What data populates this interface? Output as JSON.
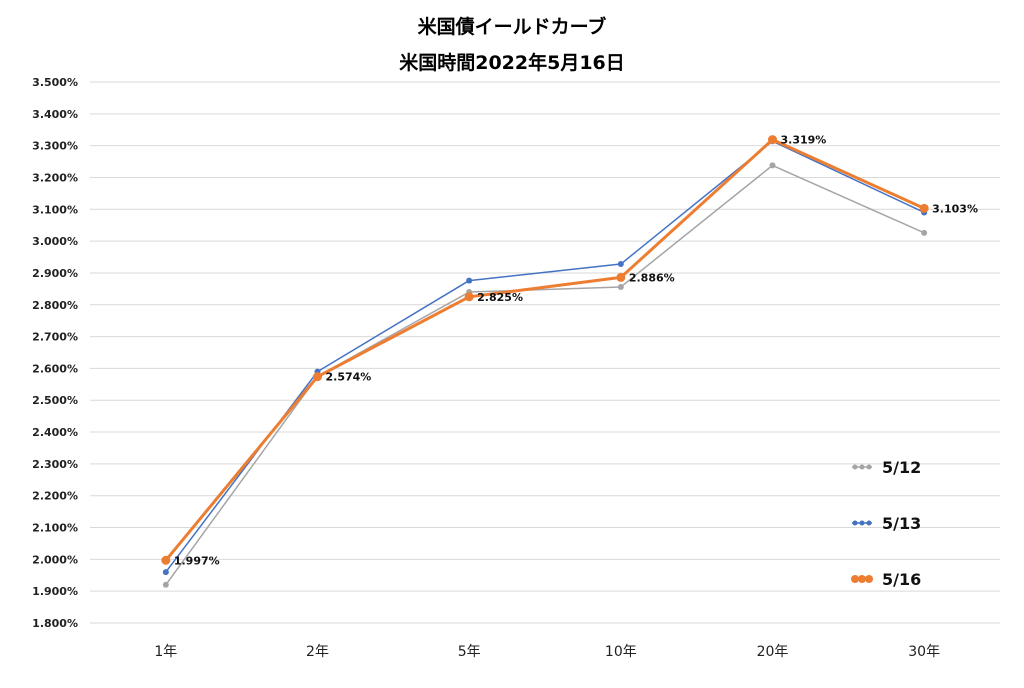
{
  "chart_data": {
    "type": "line",
    "title": "米国債イールドカーブ",
    "subtitle": "米国時間2022年5月16日",
    "categories": [
      "1年",
      "2年",
      "5年",
      "10年",
      "20年",
      "30年"
    ],
    "ylim": [
      1.8,
      3.5
    ],
    "y_ticks": [
      "1.800%",
      "1.900%",
      "2.000%",
      "2.100%",
      "2.200%",
      "2.300%",
      "2.400%",
      "2.500%",
      "2.600%",
      "2.700%",
      "2.800%",
      "2.900%",
      "3.000%",
      "3.100%",
      "3.200%",
      "3.300%",
      "3.400%",
      "3.500%"
    ],
    "grid": true,
    "legend_position": "right",
    "series": [
      {
        "name": "5/12",
        "color": "#a5a5a5",
        "values": [
          1.92,
          2.575,
          2.84,
          2.856,
          3.238,
          3.026
        ]
      },
      {
        "name": "5/13",
        "color": "#4472c4",
        "values": [
          1.96,
          2.59,
          2.876,
          2.928,
          3.314,
          3.09
        ]
      },
      {
        "name": "5/16",
        "color": "#ed7d31",
        "values": [
          1.997,
          2.574,
          2.825,
          2.886,
          3.319,
          3.103
        ],
        "data_labels": [
          "1.997%",
          "2.574%",
          "2.825%",
          "2.886%",
          "3.319%",
          "3.103%"
        ]
      }
    ]
  }
}
